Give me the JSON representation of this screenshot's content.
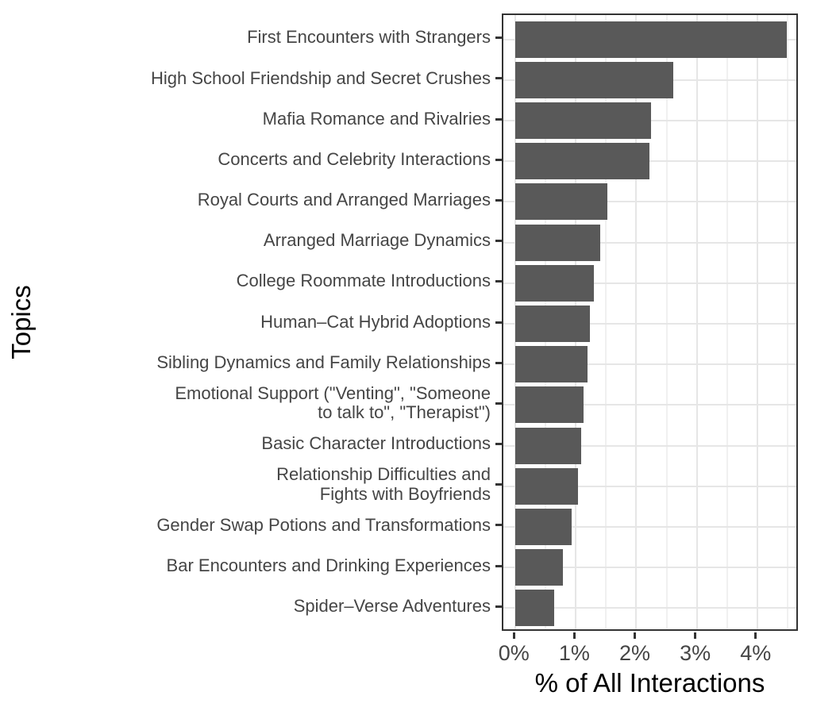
{
  "chart_data": {
    "type": "bar",
    "orientation": "horizontal",
    "title": "",
    "xlabel": "% of All Interactions",
    "ylabel": "Topics",
    "categories": [
      "First Encounters with Strangers",
      "High School Friendship and Secret Crushes",
      "Mafia Romance and Rivalries",
      "Concerts and Celebrity Interactions",
      "Royal Courts and Arranged Marriages",
      "Arranged Marriage Dynamics",
      "College Roommate Introductions",
      "Human–Cat Hybrid Adoptions",
      "Sibling Dynamics and Family Relationships",
      "Emotional Support (\"Venting\", \"Someone\nto talk to\", \"Therapist\")",
      "Basic Character Introductions",
      "Relationship Difficulties and\nFights with Boyfriends",
      "Gender Swap Potions and Transformations",
      "Bar Encounters and Drinking Experiences",
      "Spider–Verse Adventures"
    ],
    "values": [
      4.49,
      2.61,
      2.24,
      2.22,
      1.52,
      1.4,
      1.3,
      1.23,
      1.19,
      1.13,
      1.09,
      1.03,
      0.93,
      0.79,
      0.64
    ],
    "x_tick_labels": [
      "0%",
      "1%",
      "2%",
      "3%",
      "4%"
    ],
    "x_tick_values": [
      0,
      1,
      2,
      3,
      4
    ],
    "x_minor_values": [
      0.5,
      1.5,
      2.5,
      3.5,
      4.5
    ],
    "xlim": [
      -0.2,
      4.7
    ],
    "grid": true,
    "legend": false,
    "bar_color": "#595959",
    "grid_major_color": "#e6e6e6",
    "grid_minor_color": "#f0f0f0",
    "axis_text_color": "#454545",
    "axis_title_color": "#000000",
    "panel_border_color": "#333333"
  }
}
